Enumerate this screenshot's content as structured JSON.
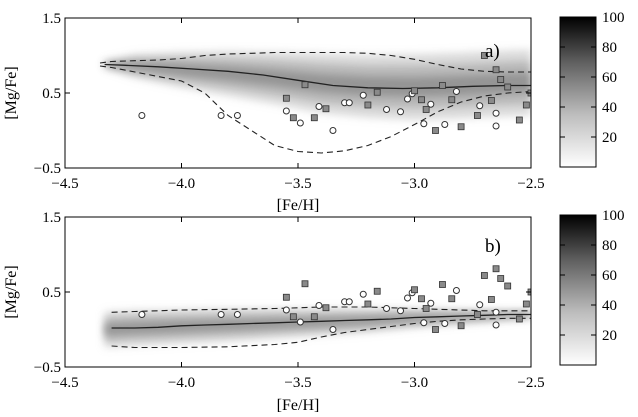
{
  "chart_data": [
    {
      "type": "scatter",
      "panel_label": "a)",
      "xlabel": "[Fe/H]",
      "ylabel": "[Mg/Fe]",
      "xlim": [
        -4.5,
        -2.5
      ],
      "ylim": [
        -0.5,
        1.5
      ],
      "xticks": [
        "−4.5",
        "−4.0",
        "−3.5",
        "−3.0",
        "−2.5"
      ],
      "yticks": [
        "−0.5",
        "0.5",
        "1.5"
      ],
      "colorbar": {
        "ticks": [
          "20",
          "40",
          "60",
          "80",
          "100"
        ],
        "range": [
          0,
          100
        ]
      },
      "density_band": {
        "x": [
          -4.33,
          -4.2,
          -4.0,
          -3.8,
          -3.6,
          -3.4,
          -3.2,
          -3.0,
          -2.8,
          -2.6,
          -2.5
        ],
        "center": [
          0.88,
          0.86,
          0.81,
          0.76,
          0.7,
          0.63,
          0.59,
          0.58,
          0.6,
          0.63,
          0.64
        ],
        "halfwidth": [
          0.05,
          0.16,
          0.24,
          0.3,
          0.35,
          0.4,
          0.42,
          0.44,
          0.44,
          0.44,
          0.44
        ]
      },
      "series": [
        {
          "name": "mean",
          "style": "solid",
          "x": [
            -4.33,
            -4.25,
            -4.1,
            -3.95,
            -3.8,
            -3.65,
            -3.5,
            -3.35,
            -3.2,
            -3.05,
            -2.9,
            -2.75,
            -2.6,
            -2.5
          ],
          "y": [
            0.88,
            0.87,
            0.85,
            0.82,
            0.79,
            0.74,
            0.67,
            0.6,
            0.57,
            0.56,
            0.57,
            0.59,
            0.6,
            0.6
          ]
        },
        {
          "name": "upper",
          "style": "dashed",
          "x": [
            -4.35,
            -4.3,
            -4.2,
            -4.1,
            -4.0,
            -3.9,
            -3.8,
            -3.7,
            -3.6,
            -3.5,
            -3.4,
            -3.3,
            -3.2,
            -3.1,
            -3.0,
            -2.9,
            -2.8,
            -2.7,
            -2.6,
            -2.5
          ],
          "y": [
            0.9,
            0.92,
            0.93,
            0.94,
            0.96,
            1.0,
            1.02,
            1.03,
            1.04,
            1.04,
            1.04,
            1.04,
            1.03,
            1.0,
            0.95,
            0.88,
            0.82,
            0.79,
            0.78,
            0.78
          ]
        },
        {
          "name": "lower",
          "style": "dashed",
          "x": [
            -4.35,
            -4.3,
            -4.2,
            -4.1,
            -4.0,
            -3.9,
            -3.85,
            -3.8,
            -3.7,
            -3.6,
            -3.5,
            -3.4,
            -3.3,
            -3.2,
            -3.1,
            -3.0,
            -2.9,
            -2.8,
            -2.7,
            -2.6,
            -2.5
          ],
          "y": [
            0.86,
            0.84,
            0.78,
            0.72,
            0.66,
            0.5,
            0.35,
            0.2,
            0.0,
            -0.2,
            -0.28,
            -0.3,
            -0.27,
            -0.2,
            -0.08,
            0.08,
            0.25,
            0.38,
            0.46,
            0.5,
            0.52
          ]
        },
        {
          "name": "circles",
          "style": "marker-circle",
          "x": [
            -4.17,
            -3.83,
            -3.76,
            -3.55,
            -3.49,
            -3.41,
            -3.35,
            -3.3,
            -3.28,
            -3.22,
            -3.12,
            -3.06,
            -3.03,
            -3.01,
            -2.96,
            -2.93,
            -2.87,
            -2.82,
            -2.72,
            -2.65,
            -2.65
          ],
          "y": [
            0.2,
            0.2,
            0.2,
            0.26,
            0.1,
            0.32,
            0.0,
            0.37,
            0.37,
            0.47,
            0.28,
            0.25,
            0.42,
            0.49,
            0.09,
            0.35,
            0.08,
            0.52,
            0.33,
            0.23,
            0.06
          ]
        },
        {
          "name": "squares",
          "style": "marker-square",
          "x": [
            -3.55,
            -3.52,
            -3.47,
            -3.43,
            -3.38,
            -3.2,
            -3.16,
            -3.0,
            -2.97,
            -2.95,
            -2.91,
            -2.88,
            -2.84,
            -2.8,
            -2.73,
            -2.7,
            -2.67,
            -2.65,
            -2.63,
            -2.6,
            -2.55,
            -2.52,
            -2.5
          ],
          "y": [
            0.43,
            0.17,
            0.61,
            0.17,
            0.29,
            0.34,
            0.51,
            0.53,
            0.41,
            0.28,
            0.0,
            0.6,
            0.41,
            0.05,
            0.2,
            1.0,
            0.4,
            0.81,
            0.68,
            0.58,
            0.14,
            0.34,
            0.5
          ]
        }
      ]
    },
    {
      "type": "scatter",
      "panel_label": "b)",
      "xlabel": "[Fe/H]",
      "ylabel": "[Mg/Fe]",
      "xlim": [
        -4.5,
        -2.5
      ],
      "ylim": [
        -0.5,
        1.5
      ],
      "xticks": [
        "−4.5",
        "−4.0",
        "−3.5",
        "−3.0",
        "−2.5"
      ],
      "yticks": [
        "−0.5",
        "0.5",
        "1.5"
      ],
      "colorbar": {
        "ticks": [
          "20",
          "40",
          "60",
          "80",
          "100"
        ],
        "range": [
          0,
          100
        ]
      },
      "density_band": {
        "x": [
          -4.33,
          -4.2,
          -4.0,
          -3.8,
          -3.6,
          -3.4,
          -3.2,
          -3.0,
          -2.8,
          -2.6,
          -2.5
        ],
        "center": [
          0.0,
          0.02,
          0.04,
          0.06,
          0.08,
          0.1,
          0.12,
          0.15,
          0.17,
          0.19,
          0.2
        ],
        "halfwidth": [
          0.24,
          0.24,
          0.23,
          0.22,
          0.2,
          0.18,
          0.16,
          0.13,
          0.1,
          0.07,
          0.06
        ]
      },
      "series": [
        {
          "name": "mean",
          "style": "solid",
          "x": [
            -4.3,
            -4.2,
            -4.1,
            -4.0,
            -3.9,
            -3.8,
            -3.7,
            -3.6,
            -3.5,
            -3.4,
            -3.3,
            -3.2,
            -3.1,
            -3.0,
            -2.9,
            -2.8,
            -2.7,
            -2.6,
            -2.5
          ],
          "y": [
            0.02,
            0.02,
            0.03,
            0.05,
            0.06,
            0.07,
            0.08,
            0.09,
            0.1,
            0.11,
            0.12,
            0.13,
            0.14,
            0.16,
            0.17,
            0.18,
            0.19,
            0.2,
            0.2
          ]
        },
        {
          "name": "upper",
          "style": "dashed",
          "x": [
            -4.3,
            -4.2,
            -4.0,
            -3.8,
            -3.6,
            -3.5,
            -3.4,
            -3.3,
            -3.2,
            -3.1,
            -3.0,
            -2.9,
            -2.8,
            -2.7,
            -2.6,
            -2.5
          ],
          "y": [
            0.23,
            0.24,
            0.26,
            0.27,
            0.28,
            0.29,
            0.3,
            0.3,
            0.3,
            0.29,
            0.28,
            0.27,
            0.26,
            0.25,
            0.25,
            0.25
          ]
        },
        {
          "name": "lower",
          "style": "dashed",
          "x": [
            -4.3,
            -4.2,
            -4.0,
            -3.8,
            -3.6,
            -3.5,
            -3.4,
            -3.3,
            -3.2,
            -3.1,
            -3.0,
            -2.9,
            -2.8,
            -2.7,
            -2.6,
            -2.5
          ],
          "y": [
            -0.22,
            -0.24,
            -0.24,
            -0.23,
            -0.2,
            -0.17,
            -0.1,
            -0.04,
            0.0,
            0.04,
            0.08,
            0.11,
            0.13,
            0.14,
            0.15,
            0.15
          ]
        },
        {
          "name": "circles",
          "style": "marker-circle",
          "x": [
            -4.17,
            -3.83,
            -3.76,
            -3.55,
            -3.49,
            -3.41,
            -3.35,
            -3.3,
            -3.28,
            -3.22,
            -3.12,
            -3.06,
            -3.03,
            -3.01,
            -2.96,
            -2.93,
            -2.87,
            -2.82,
            -2.72,
            -2.65,
            -2.65
          ],
          "y": [
            0.2,
            0.2,
            0.2,
            0.26,
            0.1,
            0.32,
            0.0,
            0.37,
            0.37,
            0.47,
            0.28,
            0.25,
            0.42,
            0.49,
            0.09,
            0.35,
            0.08,
            0.52,
            0.33,
            0.23,
            0.06
          ]
        },
        {
          "name": "squares",
          "style": "marker-square",
          "x": [
            -3.55,
            -3.52,
            -3.47,
            -3.43,
            -3.38,
            -3.2,
            -3.16,
            -3.0,
            -2.97,
            -2.95,
            -2.91,
            -2.88,
            -2.84,
            -2.8,
            -2.73,
            -2.7,
            -2.67,
            -2.65,
            -2.63,
            -2.6,
            -2.55,
            -2.52,
            -2.5
          ],
          "y": [
            0.43,
            0.17,
            0.61,
            0.17,
            0.29,
            0.34,
            0.51,
            0.53,
            0.41,
            0.28,
            0.0,
            0.6,
            0.41,
            0.05,
            0.2,
            0.72,
            0.4,
            0.81,
            0.68,
            0.58,
            0.14,
            0.34,
            0.5
          ]
        }
      ]
    }
  ]
}
